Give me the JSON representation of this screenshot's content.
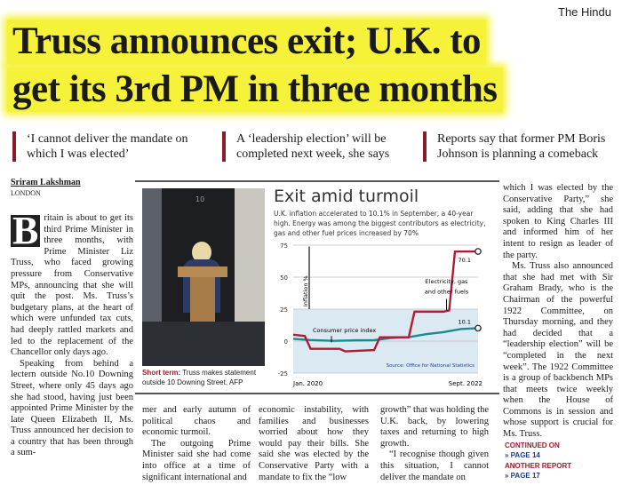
{
  "publication": "The Hindu",
  "headline": {
    "line1": "Truss announces exit; U.K. to",
    "line2": "get its 3rd PM in three months"
  },
  "decks": [
    "‘I cannot deliver the mandate on which I was elected’",
    "A ‘leadership election’ will be completed next week, she says",
    "Reports say that former PM Boris Johnson is planning a comeback"
  ],
  "byline": {
    "author": "Sriram Lakshman",
    "dateline": "LONDON"
  },
  "body": {
    "dropcap": "B",
    "col1_p1": "ritain is about to get its third Prime Minister in three months, with Prime Minister Liz Truss, who faced growing pressure from Conservative MPs, announcing that she will quit the post. Ms. Truss’s budgetary plans, at the heart of which were unfunded tax cuts, had deeply rattled markets and led to the replacement of the Chancellor only days ago.",
    "col1_p2": "Speaking from behind a lectern outside No.10 Downing Street, where only 45 days ago she had stood, having just been appointed Prime Minister by the late Queen Elizabeth II, Ms. Truss announced her decision to a country that has been through a sum-",
    "col2_p1": "mer and early autumn of political chaos and economic turmoil.",
    "col2_p2": "The outgoing Prime Minister said she had come into office at a time of significant international and",
    "col3_p1": "economic instability, with families and businesses worried about how they would pay their bills. She said she was elected by the Conservative Party with a mandate to fix the “low",
    "col4_p1": "growth” that was holding the U.K. back, by lowering taxes and returning to high growth.",
    "col4_p2": "“I recognise though given this situation, I cannot deliver the mandate on",
    "col5_p1": "which I was elected by the Conservative Party,” she said, adding that she had spoken to King Charles III and informed him of her intent to resign as leader of the party.",
    "col5_p2": "Ms. Truss also announced that she had met with Sir Graham Brady, who is the Chairman of the powerful 1922 Committee, on Thursday morning, and they had decided that a “leadership election” will be “completed in the next week”. The 1922 Committee is a group of backbench MPs that meets twice weekly when the House of Commons is in session and whose support is crucial for Ms. Truss."
  },
  "continued": {
    "label1": "CONTINUED ON",
    "page1": "» PAGE 14",
    "label2": "ANOTHER REPORT",
    "page2": "» PAGE 17"
  },
  "photo": {
    "caption_label": "Short term:",
    "caption": " Truss makes statement outside 10 Downing Street, AFP",
    "door_number": "10"
  },
  "graphic": {
    "title": "Exit amid turmoil",
    "subtitle": "U.K. inflation accelerated to 10.1% in September, a 40-year high. Energy was among the biggest contributors as electricity, gas and other fuel prices increased by 70%"
  },
  "chart_data": {
    "type": "line",
    "ylabel": "Inflation %",
    "ylim": [
      -25,
      75
    ],
    "yticks": [
      "75",
      "50",
      "25",
      "0",
      "-25"
    ],
    "xticks": [
      "Jan. 2020",
      "Sept. 2022"
    ],
    "source": "Source: Office for National Statistics",
    "colors": {
      "cpi": "#1b8a8f",
      "energy": "#b01c34",
      "band": "#dbe9f3"
    },
    "series": [
      {
        "name": "Consumer price index",
        "end_label": "10.1",
        "points": [
          [
            "2020-01",
            1.8
          ],
          [
            "2020-04",
            0.8
          ],
          [
            "2020-08",
            0.2
          ],
          [
            "2020-12",
            0.6
          ],
          [
            "2021-03",
            0.7
          ],
          [
            "2021-06",
            2.5
          ],
          [
            "2021-09",
            3.1
          ],
          [
            "2021-12",
            5.4
          ],
          [
            "2022-03",
            7.0
          ],
          [
            "2022-06",
            9.4
          ],
          [
            "2022-09",
            10.1
          ]
        ]
      },
      {
        "name": "Electricity, gas and other fuels",
        "end_label": "70.1",
        "points": [
          [
            "2020-01",
            5
          ],
          [
            "2020-03",
            4
          ],
          [
            "2020-04",
            -6
          ],
          [
            "2020-09",
            -6
          ],
          [
            "2020-10",
            -8
          ],
          [
            "2021-03",
            -7
          ],
          [
            "2021-04",
            3
          ],
          [
            "2021-09",
            3
          ],
          [
            "2021-10",
            23
          ],
          [
            "2022-03",
            23
          ],
          [
            "2022-04",
            24
          ],
          [
            "2022-05",
            70
          ],
          [
            "2022-09",
            70.1
          ]
        ]
      }
    ]
  }
}
